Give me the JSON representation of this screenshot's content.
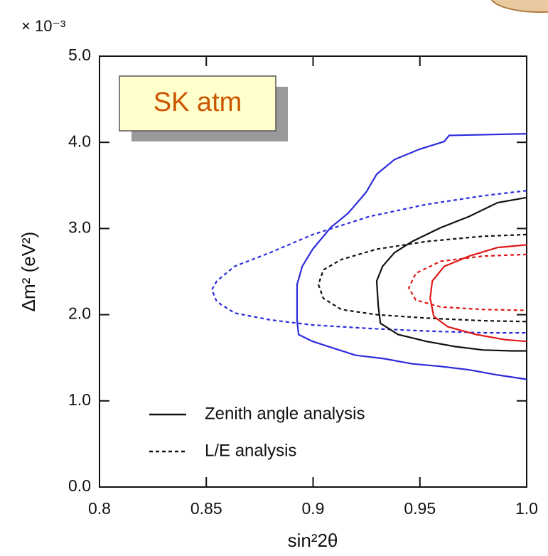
{
  "chart_data": {
    "type": "contour",
    "multiplier": "× 10⁻³",
    "x_label": "sin²2θ",
    "y_label": "Δm² (eV²)",
    "annotation": "SK atm",
    "xlim": [
      0.8,
      1.0
    ],
    "ylim": [
      0,
      5
    ],
    "xticks": [
      0.8,
      0.85,
      0.9,
      0.95,
      {
        "value": 1,
        "label": "1.0"
      }
    ],
    "yticks": [
      {
        "value": 0,
        "label": "0.0"
      },
      {
        "value": 1,
        "label": "1.0"
      },
      {
        "value": 2,
        "label": "2.0"
      },
      {
        "value": 3,
        "label": "3.0"
      },
      {
        "value": 4,
        "label": "4.0"
      },
      {
        "value": 5,
        "label": "5.0"
      }
    ],
    "legend": [
      {
        "label": "Zenith angle analysis",
        "dashed": false
      },
      {
        "label": "L/E analysis",
        "dashed": true
      }
    ],
    "series": [
      {
        "color": "#2b2bdc",
        "dashed": false,
        "x": [
          1.0,
          0.9637,
          0.9614,
          0.9498,
          0.9381,
          0.9298,
          0.9248,
          0.9165,
          0.9082,
          0.8998,
          0.8949,
          0.8925,
          0.8925,
          0.8932,
          0.8998,
          0.9098,
          0.9198,
          0.9331,
          0.9464,
          0.9597,
          0.9731,
          0.9864,
          1.0
        ],
        "y": [
          4.1,
          4.08,
          4.01,
          3.92,
          3.8,
          3.63,
          3.42,
          3.18,
          3.01,
          2.76,
          2.56,
          2.35,
          1.93,
          1.77,
          1.69,
          1.61,
          1.53,
          1.49,
          1.43,
          1.4,
          1.36,
          1.3,
          1.25
        ]
      },
      {
        "color": "#2b2bdc",
        "dashed": true,
        "x": [
          1.0,
          0.9797,
          0.9531,
          0.9265,
          0.8998,
          0.8799,
          0.8632,
          0.8549,
          0.8526,
          0.8549,
          0.8632,
          0.8799,
          0.8998,
          0.9265,
          0.9531,
          0.9797,
          1.0
        ],
        "y": [
          3.44,
          3.38,
          3.28,
          3.14,
          2.93,
          2.72,
          2.56,
          2.39,
          2.29,
          2.15,
          2.02,
          1.94,
          1.88,
          1.84,
          1.81,
          1.79,
          1.79
        ]
      },
      {
        "color": "#111111",
        "dashed": false,
        "x": [
          1.0,
          0.9864,
          0.9731,
          0.9597,
          0.9464,
          0.9381,
          0.9325,
          0.9298,
          0.9305,
          0.9315,
          0.9398,
          0.9531,
          0.9664,
          0.9797,
          0.993,
          1.0
        ],
        "y": [
          3.36,
          3.3,
          3.14,
          3.01,
          2.85,
          2.72,
          2.56,
          2.39,
          2.1,
          1.9,
          1.77,
          1.69,
          1.63,
          1.59,
          1.58,
          1.58
        ]
      },
      {
        "color": "#111111",
        "dashed": true,
        "x": [
          1.0,
          0.9797,
          0.9531,
          0.9298,
          0.9132,
          0.9048,
          0.9025,
          0.9048,
          0.9132,
          0.9298,
          0.9531,
          0.9797,
          1.0
        ],
        "y": [
          2.93,
          2.91,
          2.85,
          2.76,
          2.64,
          2.52,
          2.35,
          2.19,
          2.06,
          2.0,
          1.96,
          1.93,
          1.92
        ]
      },
      {
        "color": "#e01818",
        "dashed": false,
        "x": [
          1.0,
          0.9864,
          0.9731,
          0.9614,
          0.9558,
          0.9548,
          0.9565,
          0.9631,
          0.9764,
          0.9897,
          1.0
        ],
        "y": [
          2.81,
          2.78,
          2.68,
          2.56,
          2.39,
          2.19,
          1.98,
          1.86,
          1.77,
          1.71,
          1.69
        ]
      },
      {
        "color": "#e01818",
        "dashed": true,
        "x": [
          1.0,
          0.9797,
          0.9597,
          0.9481,
          0.9448,
          0.9481,
          0.9597,
          0.9797,
          1.0
        ],
        "y": [
          2.7,
          2.68,
          2.62,
          2.48,
          2.31,
          2.17,
          2.09,
          2.06,
          2.05
        ]
      }
    ]
  }
}
